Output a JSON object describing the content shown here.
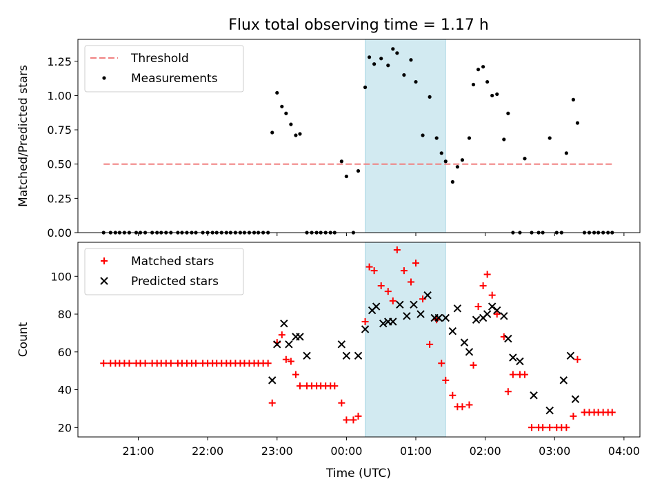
{
  "chart_data": {
    "title": "Flux total observing time = 1.17 h",
    "xlabel": "Time (UTC)",
    "x_ticks": [
      "21:00",
      "22:00",
      "23:00",
      "00:00",
      "01:00",
      "02:00",
      "03:00",
      "04:00"
    ],
    "x_tick_hours": [
      21,
      22,
      23,
      24,
      25,
      26,
      27,
      28
    ],
    "xlim_hours": [
      20.13,
      28.23
    ],
    "highlight_span_hours": [
      24.27,
      25.43
    ],
    "highlight_color": "#add8e6",
    "panels": [
      {
        "type": "scatter",
        "ylabel": "Matched/Predicted stars",
        "ylim": [
          0,
          1.41
        ],
        "y_ticks": [
          0,
          0.25,
          0.5,
          0.75,
          1.0,
          1.25
        ],
        "y_tick_labels": [
          "0.00",
          "0.25",
          "0.50",
          "0.75",
          "1.00",
          "1.25"
        ],
        "legend_position": "upper-left",
        "threshold": {
          "name": "Threshold",
          "value": 0.5,
          "x_range_hours": [
            20.5,
            27.85
          ],
          "color": "#f08080",
          "style": "dashed"
        },
        "series": [
          {
            "name": "Measurements",
            "marker": "dot",
            "color": "#000000",
            "x_hours": [
              20.5,
              20.6,
              20.67,
              20.73,
              20.8,
              20.87,
              20.97,
              21.03,
              21.1,
              21.2,
              21.27,
              21.33,
              21.4,
              21.47,
              21.57,
              21.63,
              21.7,
              21.77,
              21.83,
              21.93,
              22.0,
              22.07,
              22.13,
              22.2,
              22.27,
              22.33,
              22.4,
              22.47,
              22.53,
              22.6,
              22.67,
              22.73,
              22.8,
              22.87,
              22.93,
              23.0,
              23.07,
              23.13,
              23.2,
              23.27,
              23.33,
              23.43,
              23.5,
              23.57,
              23.63,
              23.7,
              23.77,
              23.83,
              23.93,
              24.0,
              24.1,
              24.17,
              24.27,
              24.33,
              24.4,
              24.5,
              24.6,
              24.67,
              24.73,
              24.83,
              24.93,
              25.0,
              25.1,
              25.2,
              25.3,
              25.37,
              25.43,
              25.53,
              25.6,
              25.67,
              25.77,
              25.83,
              25.9,
              25.97,
              26.03,
              26.1,
              26.17,
              26.27,
              26.33,
              26.4,
              26.5,
              26.57,
              26.67,
              26.77,
              26.83,
              26.93,
              27.03,
              27.1,
              27.17,
              27.27,
              27.33,
              27.43,
              27.5,
              27.57,
              27.63,
              27.7,
              27.77,
              27.83
            ],
            "values": [
              0,
              0,
              0,
              0,
              0,
              0,
              0,
              0,
              0,
              0,
              0,
              0,
              0,
              0,
              0,
              0,
              0,
              0,
              0,
              0,
              0,
              0,
              0,
              0,
              0,
              0,
              0,
              0,
              0,
              0,
              0,
              0,
              0,
              0,
              0.73,
              1.02,
              0.92,
              0.87,
              0.79,
              0.71,
              0.72,
              0,
              0,
              0,
              0,
              0,
              0,
              0,
              0.52,
              0.41,
              0,
              0.45,
              1.06,
              1.28,
              1.23,
              1.27,
              1.22,
              1.34,
              1.31,
              1.15,
              1.26,
              1.1,
              0.71,
              0.99,
              0.69,
              0.58,
              0.52,
              0.37,
              0.48,
              0.53,
              0.69,
              1.08,
              1.19,
              1.21,
              1.1,
              1.0,
              1.01,
              0.68,
              0.87,
              0,
              0,
              0.54,
              0,
              0,
              0,
              0.69,
              0,
              0,
              0.58,
              0.97,
              0.8,
              0,
              0,
              0,
              0,
              0,
              0,
              0
            ]
          }
        ]
      },
      {
        "type": "scatter",
        "ylabel": "Count",
        "ylim": [
          15,
          118
        ],
        "y_ticks": [
          20,
          40,
          60,
          80,
          100
        ],
        "y_tick_labels": [
          "20",
          "40",
          "60",
          "80",
          "100"
        ],
        "legend_position": "upper-left",
        "series": [
          {
            "name": "Matched stars",
            "marker": "plus",
            "color": "#ff0000",
            "x_hours": [
              20.5,
              20.6,
              20.67,
              20.73,
              20.8,
              20.87,
              20.97,
              21.03,
              21.1,
              21.2,
              21.27,
              21.33,
              21.4,
              21.47,
              21.57,
              21.63,
              21.7,
              21.77,
              21.83,
              21.93,
              22.0,
              22.07,
              22.13,
              22.2,
              22.27,
              22.33,
              22.4,
              22.47,
              22.53,
              22.6,
              22.67,
              22.73,
              22.8,
              22.87,
              22.93,
              23.0,
              23.07,
              23.13,
              23.2,
              23.27,
              23.33,
              23.43,
              23.5,
              23.57,
              23.63,
              23.7,
              23.77,
              23.83,
              23.93,
              24.0,
              24.1,
              24.17,
              24.27,
              24.33,
              24.4,
              24.5,
              24.6,
              24.67,
              24.73,
              24.83,
              24.93,
              25.0,
              25.1,
              25.2,
              25.3,
              25.37,
              25.43,
              25.53,
              25.6,
              25.67,
              25.77,
              25.83,
              25.9,
              25.97,
              26.03,
              26.1,
              26.17,
              26.27,
              26.33,
              26.4,
              26.5,
              26.57,
              26.67,
              26.77,
              26.83,
              26.93,
              27.03,
              27.1,
              27.17,
              27.27,
              27.33,
              27.43,
              27.5,
              27.57,
              27.63,
              27.7,
              27.77,
              27.83
            ],
            "values": [
              54,
              54,
              54,
              54,
              54,
              54,
              54,
              54,
              54,
              54,
              54,
              54,
              54,
              54,
              54,
              54,
              54,
              54,
              54,
              54,
              54,
              54,
              54,
              54,
              54,
              54,
              54,
              54,
              54,
              54,
              54,
              54,
              54,
              54,
              33,
              65,
              69,
              56,
              55,
              48,
              42,
              42,
              42,
              42,
              42,
              42,
              42,
              42,
              33,
              24,
              24,
              26,
              76,
              105,
              103,
              95,
              92,
              87,
              114,
              103,
              97,
              107,
              88,
              64,
              77,
              54,
              45,
              37,
              31,
              31,
              32,
              53,
              84,
              95,
              101,
              90,
              80,
              68,
              39,
              48,
              48,
              48,
              20,
              20,
              20,
              20,
              20,
              20,
              20,
              26,
              56,
              28,
              28,
              28,
              28,
              28,
              28,
              28
            ]
          },
          {
            "name": "Predicted stars",
            "marker": "x",
            "color": "#000000",
            "x_hours": [
              22.93,
              23.0,
              23.1,
              23.17,
              23.27,
              23.33,
              23.43,
              23.93,
              24.0,
              24.17,
              24.27,
              24.37,
              24.43,
              24.53,
              24.6,
              24.67,
              24.77,
              24.87,
              24.97,
              25.07,
              25.17,
              25.27,
              25.33,
              25.43,
              25.53,
              25.6,
              25.7,
              25.77,
              25.87,
              25.97,
              26.03,
              26.1,
              26.17,
              26.27,
              26.33,
              26.4,
              26.5,
              26.7,
              26.93,
              27.13,
              27.23,
              27.3
            ],
            "values": [
              45,
              64,
              75,
              64,
              68,
              68,
              58,
              64,
              58,
              58,
              72,
              82,
              84,
              75,
              76,
              76,
              85,
              79,
              85,
              80,
              90,
              78,
              78,
              78,
              71,
              83,
              65,
              60,
              77,
              78,
              80,
              84,
              82,
              79,
              67,
              57,
              55,
              37,
              29,
              45,
              58,
              35
            ]
          }
        ]
      }
    ]
  }
}
